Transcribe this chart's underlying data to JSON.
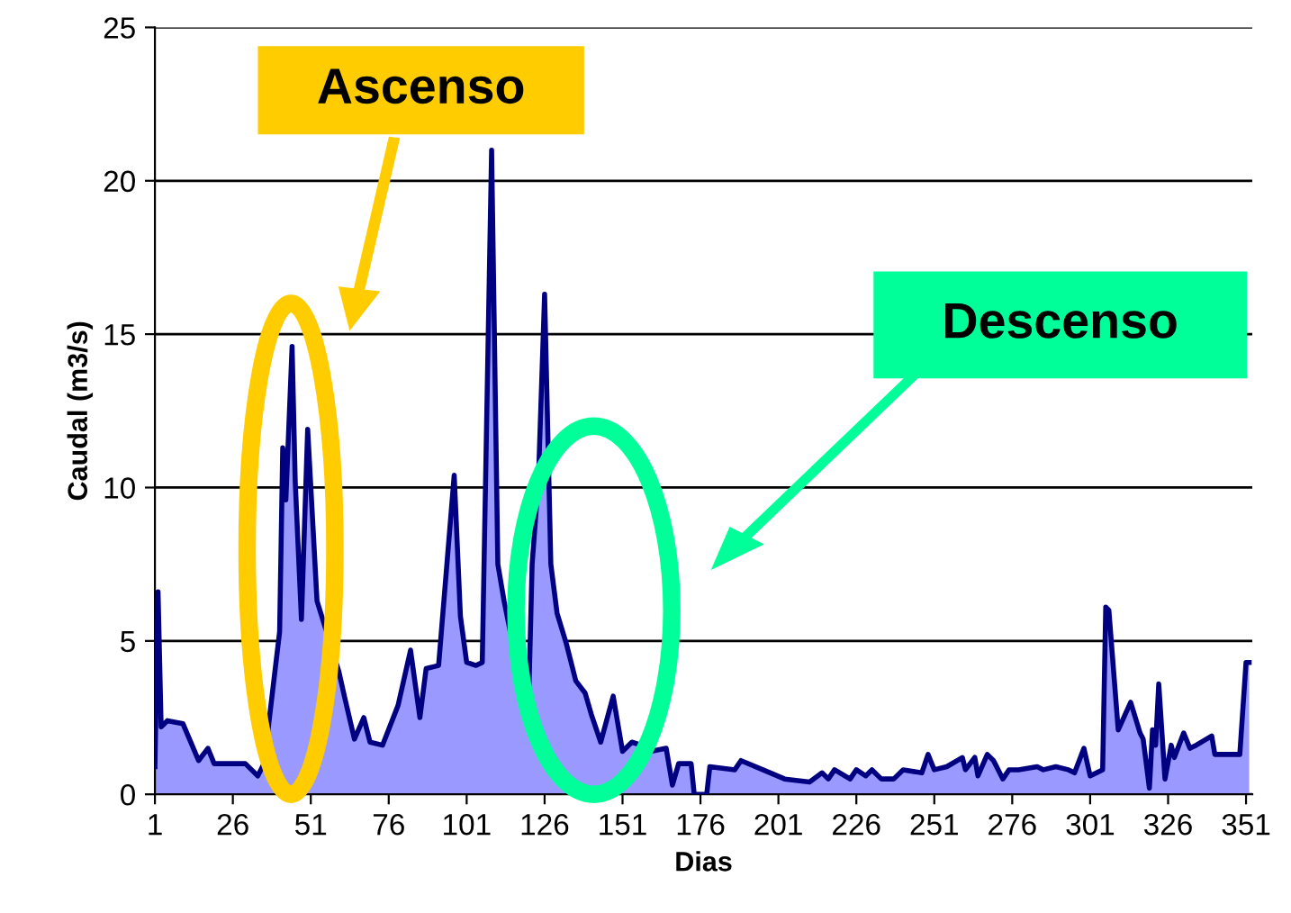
{
  "chart_data": {
    "type": "area",
    "xlabel": "Dias",
    "ylabel": "Caudal (m3/s)",
    "xlim": [
      1,
      353
    ],
    "xticks": [
      1,
      26,
      51,
      76,
      101,
      126,
      151,
      176,
      201,
      226,
      251,
      276,
      301,
      326,
      351
    ],
    "ylim": [
      0,
      25
    ],
    "yticks": [
      0,
      5,
      10,
      15,
      20,
      25
    ],
    "grid": "y",
    "annotations": [
      "Ascenso",
      "Descenso"
    ],
    "series": [
      {
        "color": "#000080",
        "x": [
          1,
          2,
          3,
          5,
          10,
          15,
          18,
          20,
          30,
          34,
          36,
          41,
          42,
          43,
          45,
          46,
          48,
          50,
          53,
          60,
          62,
          65,
          68,
          70,
          74,
          79,
          83,
          86,
          88,
          92,
          97,
          99,
          101,
          104,
          106,
          109,
          111,
          113,
          115,
          121,
          122,
          124,
          126,
          128,
          130,
          133,
          136,
          139,
          141,
          144,
          148,
          151,
          154,
          157,
          160,
          165,
          167,
          169,
          173,
          174,
          178,
          179,
          187,
          189,
          196,
          203,
          211,
          215,
          217,
          219,
          224,
          226,
          229,
          231,
          234,
          238,
          241,
          247,
          249,
          251,
          255,
          260,
          261,
          264,
          265,
          268,
          270,
          273,
          275,
          278,
          284,
          286,
          290,
          294,
          296,
          299,
          301,
          305,
          306,
          307,
          310,
          314,
          317,
          318,
          320,
          321,
          322,
          323,
          325,
          327,
          328,
          331,
          333,
          335,
          340,
          341,
          346,
          349,
          351,
          352
        ],
        "values": [
          0.9,
          6.6,
          2.2,
          2.4,
          2.3,
          1.1,
          1.5,
          1.0,
          1.0,
          0.6,
          1.0,
          5.3,
          11.3,
          9.6,
          14.6,
          10.2,
          5.7,
          11.9,
          6.3,
          4.0,
          3.1,
          1.8,
          2.5,
          1.7,
          1.6,
          2.9,
          4.7,
          2.5,
          4.1,
          4.2,
          10.4,
          5.8,
          4.3,
          4.2,
          4.3,
          21.0,
          7.5,
          6.3,
          5.3,
          3.5,
          7.5,
          10.2,
          16.3,
          7.5,
          5.9,
          4.9,
          3.7,
          3.3,
          2.6,
          1.7,
          3.2,
          1.4,
          1.7,
          1.6,
          1.4,
          1.5,
          0.3,
          1.0,
          1.0,
          0,
          0,
          0.9,
          0.8,
          1.1,
          0.8,
          0.5,
          0.4,
          0.7,
          0.5,
          0.8,
          0.5,
          0.8,
          0.6,
          0.8,
          0.5,
          0.5,
          0.8,
          0.7,
          1.3,
          0.8,
          0.9,
          1.2,
          0.8,
          1.2,
          0.6,
          1.3,
          1.1,
          0.5,
          0.8,
          0.8,
          0.9,
          0.8,
          0.9,
          0.8,
          0.7,
          1.5,
          0.6,
          0.8,
          6.1,
          6.0,
          2.1,
          3.0,
          2.0,
          1.8,
          0.2,
          2.1,
          1.6,
          3.6,
          0.5,
          1.6,
          1.2,
          2.0,
          1.5,
          1.6,
          1.9,
          1.3,
          1.3,
          1.3,
          4.3,
          4.3
        ]
      }
    ]
  }
}
